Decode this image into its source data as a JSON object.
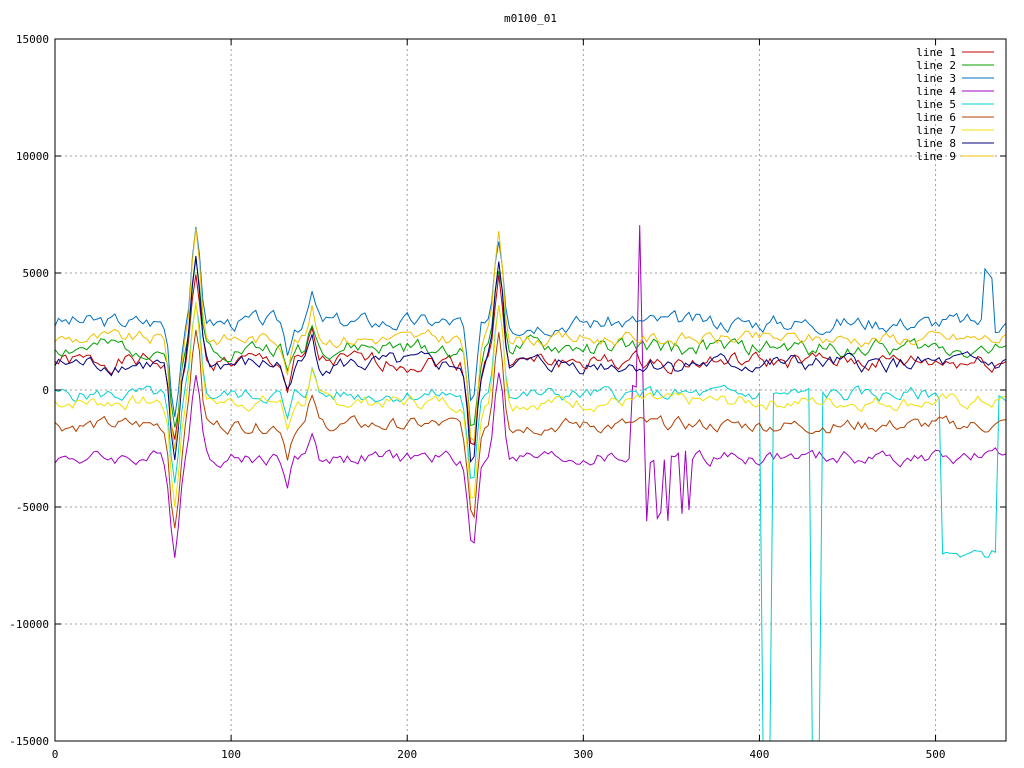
{
  "chart_data": {
    "type": "line",
    "title": "m0100_01",
    "xlabel": "",
    "ylabel": "",
    "xlim": [
      0,
      540
    ],
    "ylim": [
      -15000,
      15000
    ],
    "xticks": [
      0,
      100,
      200,
      300,
      400,
      500
    ],
    "yticks": [
      -15000,
      -10000,
      -5000,
      0,
      5000,
      10000,
      15000
    ],
    "grid": true,
    "legend_position": "top-right",
    "series": [
      {
        "name": "line 1",
        "color": "#c00000",
        "base": 1200,
        "amp": 300,
        "seed": 1
      },
      {
        "name": "line 2",
        "color": "#00a000",
        "base": 1800,
        "amp": 300,
        "seed": 2
      },
      {
        "name": "line 3",
        "color": "#0070c0",
        "base": 2900,
        "amp": 300,
        "seed": 3
      },
      {
        "name": "line 4",
        "color": "#a000c0",
        "base": -2900,
        "amp": 250,
        "seed": 4
      },
      {
        "name": "line 5",
        "color": "#00d0d0",
        "base": -200,
        "amp": 250,
        "seed": 5
      },
      {
        "name": "line 6",
        "color": "#b04000",
        "base": -1500,
        "amp": 250,
        "seed": 6
      },
      {
        "name": "line 7",
        "color": "#f0e000",
        "base": -500,
        "amp": 250,
        "seed": 7
      },
      {
        "name": "line 8",
        "color": "#000080",
        "base": 1100,
        "amp": 300,
        "seed": 8
      },
      {
        "name": "line 9",
        "color": "#f0c000",
        "base": 2200,
        "amp": 250,
        "seed": 9
      }
    ]
  }
}
